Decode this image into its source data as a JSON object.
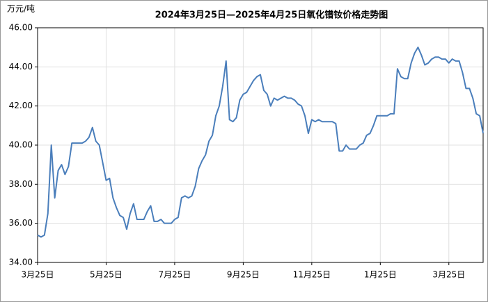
{
  "chart_data": {
    "type": "line",
    "title": "2024年3月25日—2025年4月25日氧化镨钕价格走势图",
    "y_label": "万元/吨",
    "categories": [
      "3月25日",
      null,
      null,
      null,
      null,
      null,
      null,
      null,
      null,
      null,
      null,
      null,
      null,
      null,
      null,
      null,
      null,
      null,
      null,
      null,
      "5月25日",
      null,
      null,
      null,
      null,
      null,
      null,
      null,
      null,
      null,
      null,
      null,
      null,
      null,
      null,
      null,
      null,
      null,
      null,
      null,
      "7月25日",
      null,
      null,
      null,
      null,
      null,
      null,
      null,
      null,
      null,
      null,
      null,
      null,
      null,
      null,
      null,
      null,
      null,
      null,
      null,
      "9月25日",
      null,
      null,
      null,
      null,
      null,
      null,
      null,
      null,
      null,
      null,
      null,
      null,
      null,
      null,
      null,
      null,
      null,
      null,
      null,
      "11月25日",
      null,
      null,
      null,
      null,
      null,
      null,
      null,
      null,
      null,
      null,
      null,
      null,
      null,
      null,
      null,
      null,
      null,
      null,
      null,
      "1月25日",
      null,
      null,
      null,
      null,
      null,
      null,
      null,
      null,
      null,
      null,
      null,
      null,
      null,
      null,
      null,
      null,
      null,
      null,
      null,
      "3月25日",
      null,
      null,
      null,
      null,
      null,
      null,
      null,
      null,
      null,
      null
    ],
    "series": [
      {
        "color": "#4a7ebb",
        "values": [
          35.4,
          35.3,
          35.4,
          36.5,
          40.0,
          37.3,
          38.7,
          39.0,
          38.5,
          38.9,
          40.1,
          40.1,
          40.1,
          40.1,
          40.2,
          40.4,
          40.9,
          40.2,
          40.0,
          39.1,
          38.2,
          38.3,
          37.3,
          36.8,
          36.4,
          36.3,
          35.7,
          36.5,
          37.0,
          36.2,
          36.2,
          36.2,
          36.6,
          36.9,
          36.1,
          36.1,
          36.2,
          36.0,
          36.0,
          36.0,
          36.2,
          36.3,
          37.3,
          37.4,
          37.3,
          37.4,
          37.9,
          38.8,
          39.2,
          39.5,
          40.2,
          40.5,
          41.5,
          42.0,
          43.0,
          44.3,
          41.3,
          41.2,
          41.4,
          42.3,
          42.6,
          42.7,
          43.0,
          43.3,
          43.5,
          43.6,
          42.8,
          42.6,
          42.0,
          42.4,
          42.3,
          42.4,
          42.5,
          42.4,
          42.4,
          42.3,
          42.1,
          42.0,
          41.5,
          40.6,
          41.3,
          41.2,
          41.3,
          41.2,
          41.2,
          41.2,
          41.2,
          41.1,
          39.7,
          39.7,
          40.0,
          39.8,
          39.8,
          39.8,
          40.0,
          40.1,
          40.5,
          40.6,
          41.0,
          41.5,
          41.5,
          41.5,
          41.5,
          41.6,
          41.6,
          43.9,
          43.5,
          43.4,
          43.4,
          44.2,
          44.7,
          45.0,
          44.6,
          44.1,
          44.2,
          44.4,
          44.5,
          44.5,
          44.4,
          44.4,
          44.2,
          44.4,
          44.3,
          44.3,
          43.7,
          42.9,
          42.9,
          42.4,
          41.6,
          41.5,
          40.6
        ]
      }
    ],
    "ylim": [
      34,
      46
    ],
    "yticks": [
      {
        "value": 34,
        "label": "34.00"
      },
      {
        "value": 36,
        "label": "36.00"
      },
      {
        "value": 38,
        "label": "38.00"
      },
      {
        "value": 40,
        "label": "40.00"
      },
      {
        "value": 42,
        "label": "42.00"
      },
      {
        "value": 44,
        "label": "44.00"
      },
      {
        "value": 46,
        "label": "46.00"
      }
    ],
    "grid": true
  }
}
